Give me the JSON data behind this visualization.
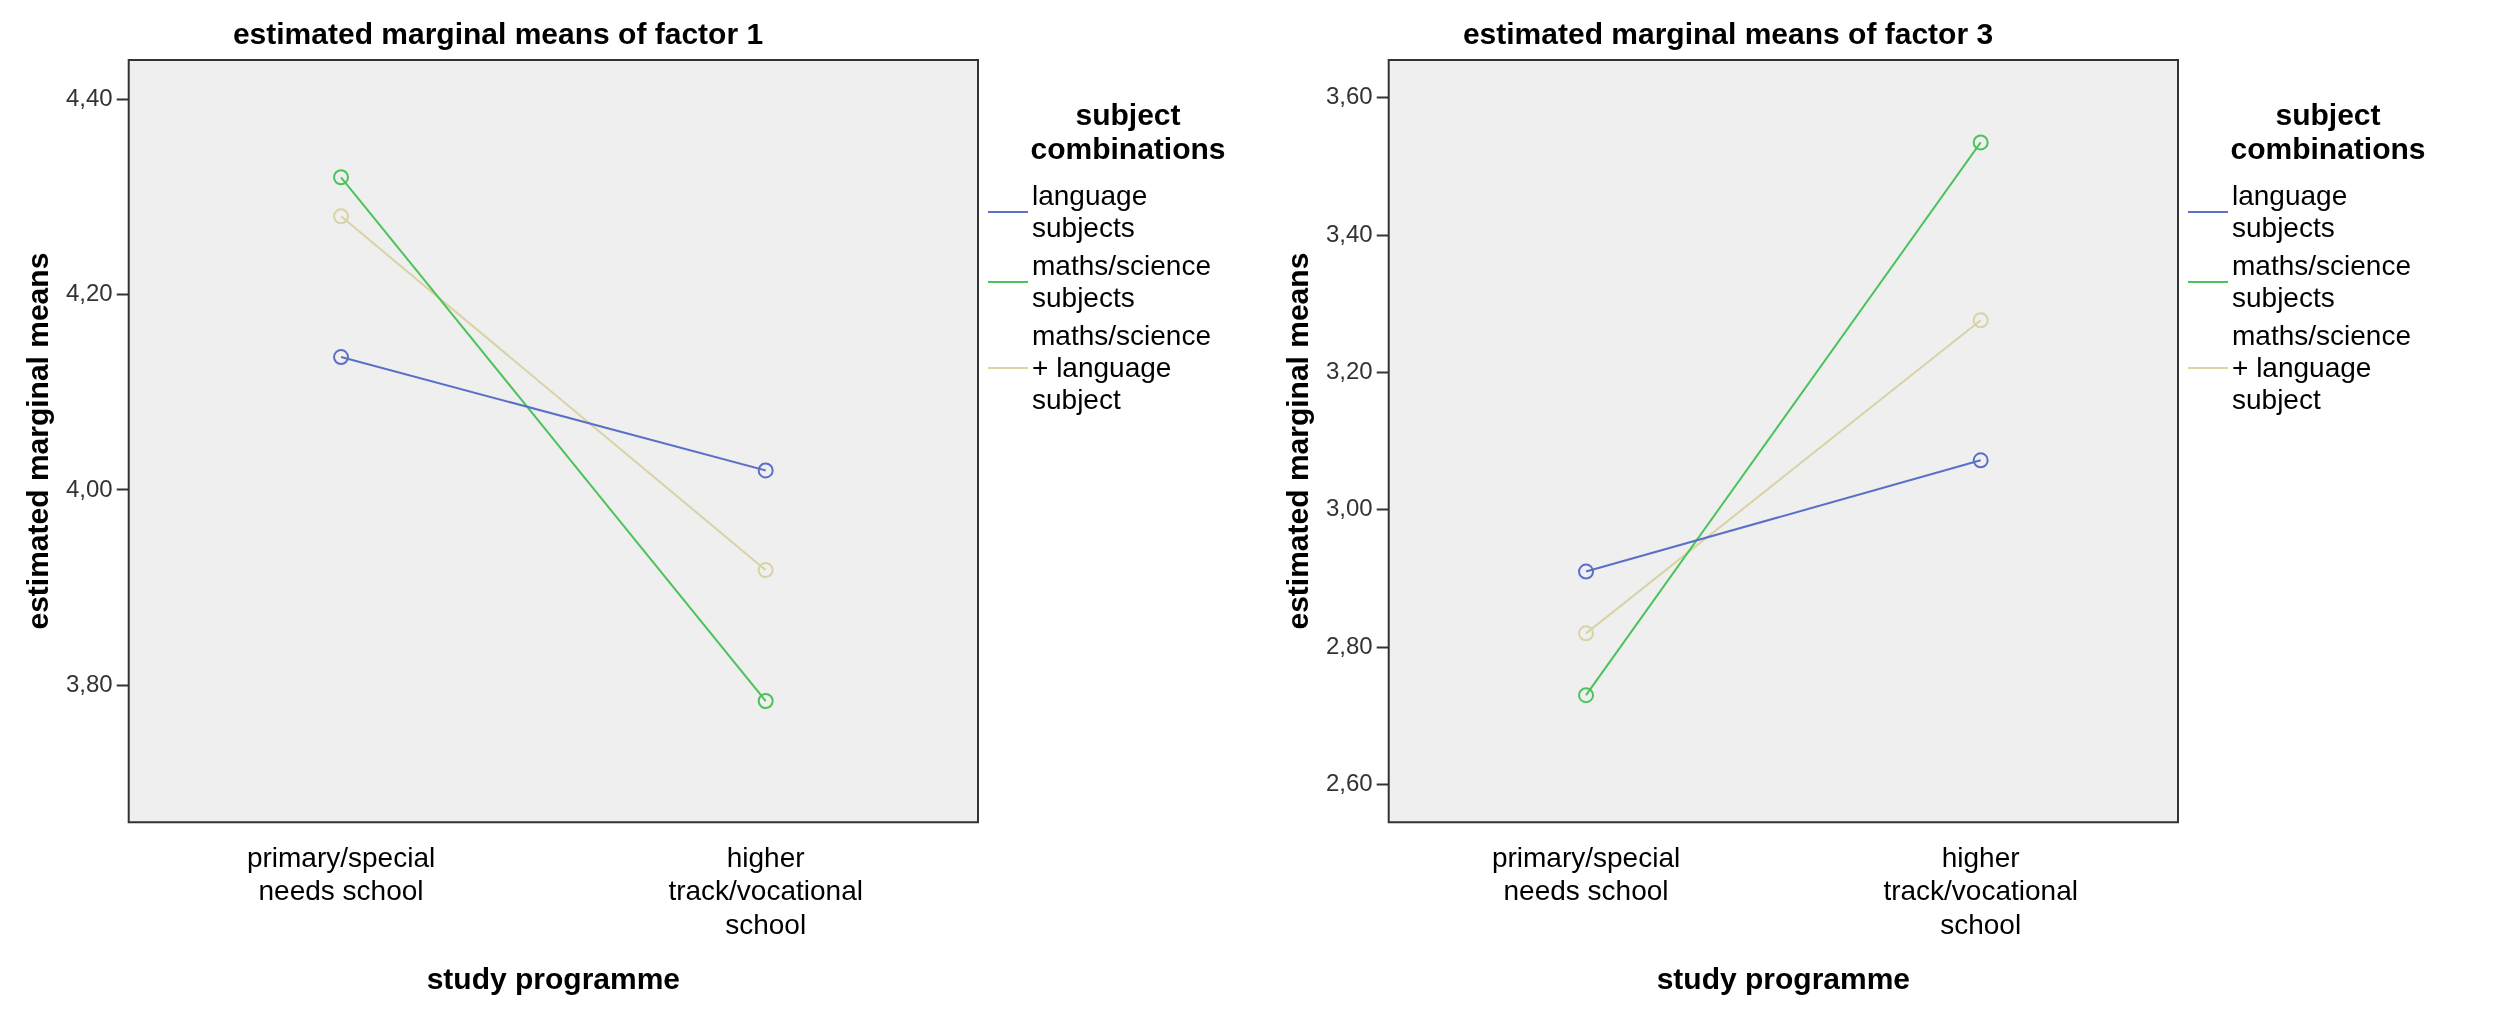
{
  "chart_data": [
    {
      "type": "line",
      "title": "estimated marginal means of factor 1",
      "xlabel": "study programme",
      "ylabel": "estimated marginal means",
      "legend_title": "subject combinations",
      "legend": "right",
      "marker": "circle",
      "grid": false,
      "categories": [
        "primary/special needs school",
        "higher track/vocational school"
      ],
      "ylim": [
        3.66,
        4.44
      ],
      "yticks": [
        {
          "value": 3.8,
          "label": "3,80"
        },
        {
          "value": 4.0,
          "label": "4,00"
        },
        {
          "value": 4.2,
          "label": "4,20"
        },
        {
          "value": 4.4,
          "label": "4,40"
        }
      ],
      "series": [
        {
          "name": "language subjects",
          "color": "#5b6fc6",
          "values": [
            4.136,
            4.02
          ]
        },
        {
          "name": "maths/science subjects",
          "color": "#4cc35a",
          "values": [
            4.32,
            3.784
          ]
        },
        {
          "name": "maths/science + language subject",
          "color": "#d9d2a3",
          "values": [
            4.28,
            3.918
          ]
        }
      ]
    },
    {
      "type": "line",
      "title": "estimated marginal means of factor 3",
      "xlabel": "study programme",
      "ylabel": "estimated marginal means",
      "legend_title": "subject combinations",
      "legend": "right",
      "marker": "circle",
      "grid": false,
      "categories": [
        "primary/special needs school",
        "higher track/vocational school"
      ],
      "ylim": [
        2.545,
        3.655
      ],
      "yticks": [
        {
          "value": 2.6,
          "label": "2,60"
        },
        {
          "value": 2.8,
          "label": "2,80"
        },
        {
          "value": 3.0,
          "label": "3,00"
        },
        {
          "value": 3.2,
          "label": "3,20"
        },
        {
          "value": 3.4,
          "label": "3,40"
        },
        {
          "value": 3.6,
          "label": "3,60"
        }
      ],
      "series": [
        {
          "name": "language subjects",
          "color": "#5b6fc6",
          "values": [
            2.91,
            3.072
          ]
        },
        {
          "name": "maths/science subjects",
          "color": "#4cc35a",
          "values": [
            2.73,
            3.535
          ]
        },
        {
          "name": "maths/science + language subject",
          "color": "#d9d2a3",
          "values": [
            2.82,
            3.276
          ]
        }
      ]
    }
  ]
}
